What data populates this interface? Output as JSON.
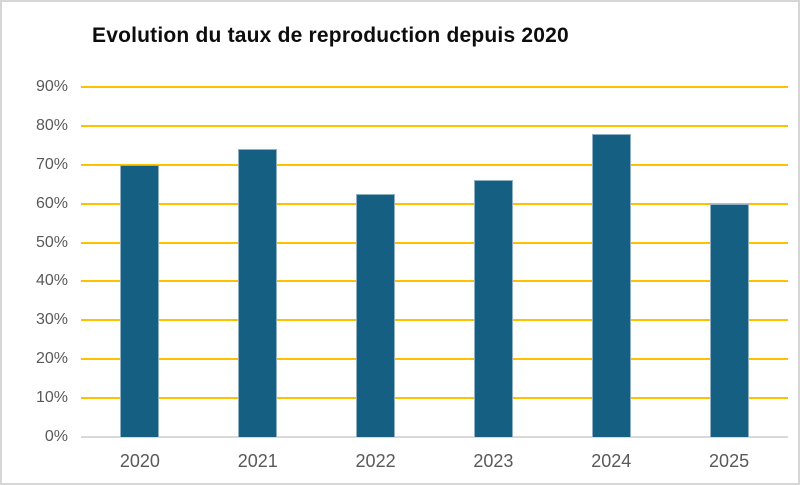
{
  "chart_data": {
    "type": "bar",
    "title": "Evolution du taux de reproduction depuis 2020",
    "categories": [
      "2020",
      "2021",
      "2022",
      "2023",
      "2024",
      "2025"
    ],
    "values": [
      70,
      74,
      62.5,
      66,
      78,
      60
    ],
    "series_name": "Taux de reproduction",
    "value_format": "percent",
    "xlabel": "",
    "ylabel": "",
    "ylim": [
      0,
      90
    ],
    "ytick_step": 10,
    "ytick_labels": [
      "0%",
      "10%",
      "20%",
      "30%",
      "40%",
      "50%",
      "60%",
      "70%",
      "80%",
      "90%"
    ],
    "grid": true,
    "legend_position": "none",
    "colors": {
      "bar_fill": "#156082",
      "bar_border": "#8fb0c3",
      "gridline": "#ffc000",
      "axis_line": "#d9d9d9",
      "tick_label": "#595959",
      "title": "#0d0d0d",
      "background": "#ffffff"
    }
  }
}
